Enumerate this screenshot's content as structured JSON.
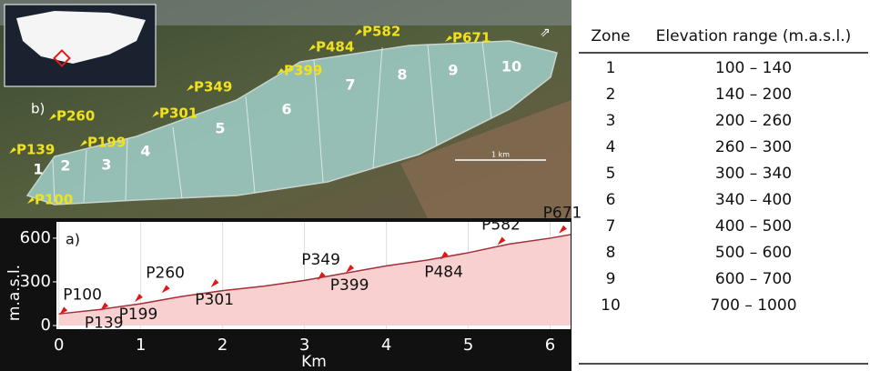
{
  "map": {
    "panel_label": "b)",
    "scale_label": "1 km",
    "points": [
      "P582",
      "P484",
      "P671",
      "P399",
      "P349",
      "P260",
      "P301",
      "P139",
      "P199",
      "P100"
    ],
    "zones": [
      "1",
      "2",
      "3",
      "4",
      "5",
      "6",
      "7",
      "8",
      "9",
      "10"
    ]
  },
  "chart_data": {
    "type": "area",
    "panel_label": "a)",
    "x_label": "Km",
    "y_label": "m.a.s.l.",
    "xlim": [
      -0.03,
      6.25
    ],
    "ylim": [
      -25,
      712
    ],
    "xticks": [
      0,
      1,
      2,
      3,
      4,
      5,
      6
    ],
    "yticks": [
      0,
      300,
      600
    ],
    "x": [
      0,
      0.5,
      1,
      1.5,
      2,
      2.5,
      3,
      3.5,
      4,
      4.5,
      5,
      5.5,
      6,
      6.25
    ],
    "values": [
      80,
      110,
      150,
      200,
      240,
      270,
      310,
      360,
      410,
      450,
      500,
      560,
      600,
      625
    ],
    "points": [
      {
        "label": "P100",
        "x": 0.05,
        "y": 110
      },
      {
        "label": "P139",
        "x": 0.55,
        "y": 140
      },
      {
        "label": "P199",
        "x": 0.97,
        "y": 200
      },
      {
        "label": "P260",
        "x": 1.3,
        "y": 260
      },
      {
        "label": "P301",
        "x": 1.9,
        "y": 300
      },
      {
        "label": "P349",
        "x": 3.2,
        "y": 350
      },
      {
        "label": "P399",
        "x": 3.55,
        "y": 400
      },
      {
        "label": "P484",
        "x": 4.7,
        "y": 490
      },
      {
        "label": "P582",
        "x": 5.4,
        "y": 590
      },
      {
        "label": "P671",
        "x": 6.15,
        "y": 670
      }
    ],
    "color": "#f8d0d0",
    "line_color": "#a0303a"
  },
  "table": {
    "header": [
      "Zone",
      "Elevation range (m.a.s.l.)"
    ],
    "rows": [
      [
        "1",
        "100 – 140"
      ],
      [
        "2",
        "140 – 200"
      ],
      [
        "3",
        "200 – 260"
      ],
      [
        "4",
        "260 – 300"
      ],
      [
        "5",
        "300 – 340"
      ],
      [
        "6",
        "340 – 400"
      ],
      [
        "7",
        "400 – 500"
      ],
      [
        "8",
        "500 – 600"
      ],
      [
        "9",
        "600 – 700"
      ],
      [
        "10",
        "700 – 1000"
      ]
    ]
  }
}
